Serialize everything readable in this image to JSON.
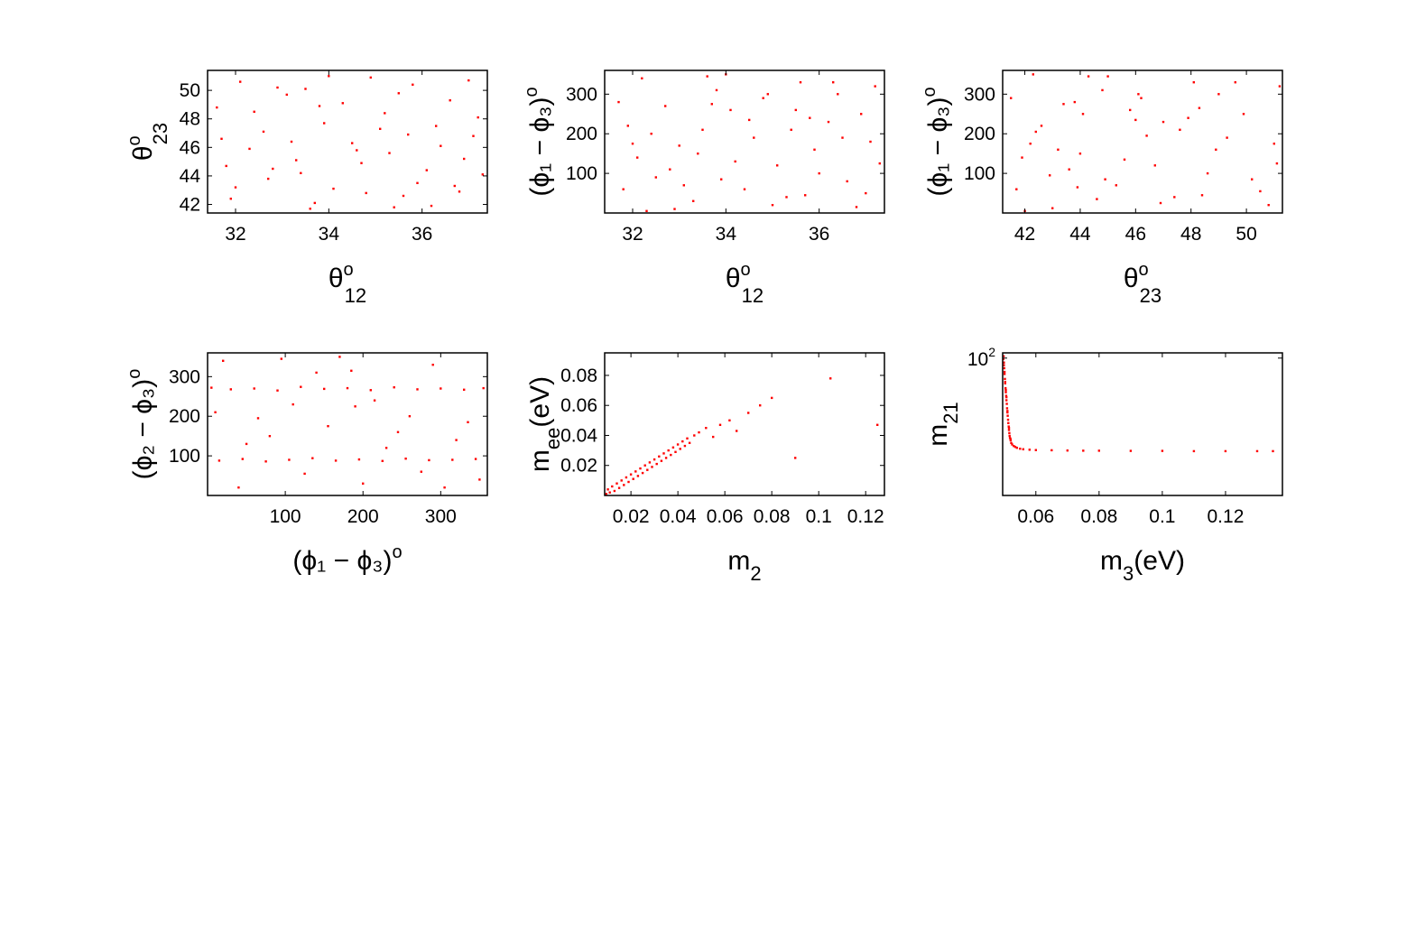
{
  "chart_data": [
    {
      "type": "scatter",
      "xlabel": {
        "base": "θ",
        "sup": "o",
        "sub": "12"
      },
      "ylabel": {
        "base": "θ",
        "sup": "o",
        "sub": "23"
      },
      "xlim": [
        31.4,
        37.4
      ],
      "ylim": [
        41.4,
        51.4
      ],
      "xticks": [
        32,
        34,
        36
      ],
      "yticks": [
        42,
        44,
        46,
        48,
        50
      ],
      "marker_color": "#ff0000",
      "points": [
        [
          32.1,
          50.6
        ],
        [
          36.9,
          45.2
        ],
        [
          33.7,
          42.1
        ],
        [
          35.2,
          48.4
        ],
        [
          31.8,
          44.7
        ],
        [
          34.5,
          46.3
        ],
        [
          36.2,
          41.9
        ],
        [
          33.1,
          49.7
        ],
        [
          35.9,
          43.5
        ],
        [
          32.6,
          47.1
        ],
        [
          34.9,
          50.9
        ],
        [
          37.1,
          46.8
        ],
        [
          33.4,
          44.2
        ],
        [
          35.6,
          42.6
        ],
        [
          32.3,
          45.9
        ],
        [
          36.6,
          49.3
        ],
        [
          34.1,
          43.1
        ],
        [
          31.6,
          48.8
        ],
        [
          35.3,
          45.6
        ],
        [
          33.9,
          47.7
        ],
        [
          36.8,
          42.9
        ],
        [
          32.9,
          50.2
        ],
        [
          34.7,
          44.9
        ],
        [
          37.2,
          48.1
        ],
        [
          33.2,
          46.4
        ],
        [
          35.8,
          50.4
        ],
        [
          31.9,
          42.4
        ],
        [
          36.4,
          46.1
        ],
        [
          34.3,
          49.1
        ],
        [
          32.7,
          43.8
        ],
        [
          35.1,
          47.3
        ],
        [
          33.6,
          41.7
        ],
        [
          36.1,
          44.4
        ],
        [
          32.4,
          48.5
        ],
        [
          34.8,
          42.8
        ],
        [
          37.0,
          50.7
        ],
        [
          33.3,
          45.1
        ],
        [
          35.5,
          49.8
        ],
        [
          31.7,
          46.6
        ],
        [
          36.7,
          43.3
        ],
        [
          34.0,
          51.0
        ],
        [
          32.8,
          44.5
        ],
        [
          35.4,
          41.8
        ],
        [
          33.8,
          48.9
        ],
        [
          36.3,
          47.5
        ],
        [
          32.0,
          43.2
        ],
        [
          34.6,
          45.8
        ],
        [
          37.3,
          44.1
        ],
        [
          33.5,
          50.1
        ],
        [
          35.7,
          46.9
        ]
      ]
    },
    {
      "type": "scatter",
      "xlabel": {
        "base": "θ",
        "sup": "o",
        "sub": "12"
      },
      "ylabel": {
        "text": "(ϕ₁ − ϕ₃)",
        "sup": "o"
      },
      "xlim": [
        31.4,
        37.4
      ],
      "ylim": [
        0,
        360
      ],
      "xticks": [
        32,
        34,
        36
      ],
      "yticks": [
        100,
        200,
        300
      ],
      "marker_color": "#ff0000",
      "points": [
        [
          32.2,
          340
        ],
        [
          36.8,
          15
        ],
        [
          33.5,
          210
        ],
        [
          35.1,
          120
        ],
        [
          31.7,
          280
        ],
        [
          34.4,
          60
        ],
        [
          36.3,
          330
        ],
        [
          33.0,
          170
        ],
        [
          35.8,
          240
        ],
        [
          32.5,
          90
        ],
        [
          34.9,
          300
        ],
        [
          37.1,
          180
        ],
        [
          33.3,
          30
        ],
        [
          35.5,
          260
        ],
        [
          32.1,
          140
        ],
        [
          36.6,
          80
        ],
        [
          34.0,
          350
        ],
        [
          31.9,
          220
        ],
        [
          35.3,
          40
        ],
        [
          33.8,
          310
        ],
        [
          36.9,
          250
        ],
        [
          32.8,
          110
        ],
        [
          34.6,
          190
        ],
        [
          37.2,
          320
        ],
        [
          33.1,
          70
        ],
        [
          35.9,
          160
        ],
        [
          32.3,
          5
        ],
        [
          36.2,
          230
        ],
        [
          34.2,
          130
        ],
        [
          32.7,
          270
        ],
        [
          35.0,
          20
        ],
        [
          33.6,
          345
        ],
        [
          36.0,
          100
        ],
        [
          32.4,
          200
        ],
        [
          34.8,
          290
        ],
        [
          37.0,
          50
        ],
        [
          33.4,
          150
        ],
        [
          35.6,
          330
        ],
        [
          31.8,
          60
        ],
        [
          36.5,
          190
        ],
        [
          34.1,
          260
        ],
        [
          32.9,
          10
        ],
        [
          35.4,
          210
        ],
        [
          33.9,
          85
        ],
        [
          36.4,
          300
        ],
        [
          32.0,
          175
        ],
        [
          34.5,
          235
        ],
        [
          37.3,
          125
        ],
        [
          33.7,
          275
        ],
        [
          35.7,
          45
        ]
      ]
    },
    {
      "type": "scatter",
      "xlabel": {
        "base": "θ",
        "sup": "o",
        "sub": "23"
      },
      "ylabel": {
        "text": "(ϕ₁ − ϕ₃)",
        "sup": "o"
      },
      "xlim": [
        41.2,
        51.3
      ],
      "ylim": [
        0,
        360
      ],
      "xticks": [
        42,
        44,
        46,
        48,
        50
      ],
      "yticks": [
        100,
        200,
        300
      ],
      "marker_color": "#ff0000",
      "points": [
        [
          42.3,
          350
        ],
        [
          50.8,
          20
        ],
        [
          44.1,
          250
        ],
        [
          46.7,
          120
        ],
        [
          41.5,
          290
        ],
        [
          45.3,
          70
        ],
        [
          49.6,
          330
        ],
        [
          43.2,
          160
        ],
        [
          47.9,
          240
        ],
        [
          42.9,
          95
        ],
        [
          46.1,
          300
        ],
        [
          51.0,
          175
        ],
        [
          44.6,
          35
        ],
        [
          48.3,
          265
        ],
        [
          41.9,
          140
        ],
        [
          50.2,
          85
        ],
        [
          45.0,
          345
        ],
        [
          42.6,
          220
        ],
        [
          47.4,
          40
        ],
        [
          44.8,
          310
        ],
        [
          49.9,
          250
        ],
        [
          43.6,
          110
        ],
        [
          46.4,
          195
        ],
        [
          51.2,
          320
        ],
        [
          43.9,
          65
        ],
        [
          48.9,
          160
        ],
        [
          42.0,
          5
        ],
        [
          47.0,
          230
        ],
        [
          45.6,
          135
        ],
        [
          43.4,
          275
        ],
        [
          46.9,
          25
        ],
        [
          44.3,
          345
        ],
        [
          48.6,
          100
        ],
        [
          42.4,
          205
        ],
        [
          46.2,
          290
        ],
        [
          50.5,
          55
        ],
        [
          44.0,
          150
        ],
        [
          48.1,
          330
        ],
        [
          41.7,
          60
        ],
        [
          49.3,
          190
        ],
        [
          45.8,
          260
        ],
        [
          43.0,
          12
        ],
        [
          47.6,
          210
        ],
        [
          44.9,
          85
        ],
        [
          49.0,
          300
        ],
        [
          42.2,
          175
        ],
        [
          46.0,
          235
        ],
        [
          51.1,
          125
        ],
        [
          43.8,
          280
        ],
        [
          48.4,
          45
        ]
      ]
    },
    {
      "type": "scatter",
      "xlabel": {
        "text": "(ϕ₁ − ϕ₃)",
        "sup": "o"
      },
      "ylabel": {
        "text": "(ϕ₂ − ϕ₃)",
        "sup": "o"
      },
      "xlim": [
        0,
        360
      ],
      "ylim": [
        0,
        360
      ],
      "xticks": [
        100,
        200,
        300
      ],
      "yticks": [
        100,
        200,
        300
      ],
      "marker_color": "#ff0000",
      "points": [
        [
          5,
          272
        ],
        [
          30,
          268
        ],
        [
          60,
          270
        ],
        [
          90,
          265
        ],
        [
          120,
          274
        ],
        [
          150,
          269
        ],
        [
          180,
          271
        ],
        [
          210,
          266
        ],
        [
          240,
          273
        ],
        [
          270,
          268
        ],
        [
          300,
          270
        ],
        [
          330,
          267
        ],
        [
          355,
          271
        ],
        [
          15,
          88
        ],
        [
          45,
          92
        ],
        [
          75,
          86
        ],
        [
          105,
          90
        ],
        [
          135,
          94
        ],
        [
          165,
          88
        ],
        [
          195,
          91
        ],
        [
          225,
          87
        ],
        [
          255,
          93
        ],
        [
          285,
          89
        ],
        [
          315,
          90
        ],
        [
          345,
          92
        ],
        [
          20,
          340
        ],
        [
          80,
          150
        ],
        [
          140,
          310
        ],
        [
          200,
          30
        ],
        [
          260,
          200
        ],
        [
          320,
          140
        ],
        [
          40,
          20
        ],
        [
          110,
          230
        ],
        [
          170,
          350
        ],
        [
          230,
          120
        ],
        [
          290,
          330
        ],
        [
          350,
          40
        ],
        [
          65,
          195
        ],
        [
          125,
          55
        ],
        [
          185,
          315
        ],
        [
          245,
          160
        ],
        [
          305,
          20
        ],
        [
          10,
          210
        ],
        [
          95,
          345
        ],
        [
          155,
          175
        ],
        [
          215,
          240
        ],
        [
          275,
          60
        ],
        [
          335,
          185
        ],
        [
          50,
          130
        ],
        [
          190,
          225
        ]
      ]
    },
    {
      "type": "scatter",
      "xlabel": {
        "base": "m",
        "sub": "2"
      },
      "ylabel": {
        "base": "m",
        "sub": "ee",
        "after": "(eV)"
      },
      "xlim": [
        0.0088,
        0.128
      ],
      "ylim": [
        0,
        0.095
      ],
      "xticks": [
        0.02,
        0.04,
        0.06,
        0.08,
        0.1,
        0.12
      ],
      "xtick_labels": [
        "0.02",
        "0.04",
        "0.06",
        "0.08",
        "0.1",
        "0.12"
      ],
      "yticks": [
        0.02,
        0.04,
        0.06,
        0.08
      ],
      "marker_color": "#ff0000",
      "points": [
        [
          0.0095,
          0.001
        ],
        [
          0.0102,
          0.004
        ],
        [
          0.011,
          0.002
        ],
        [
          0.012,
          0.006
        ],
        [
          0.013,
          0.003
        ],
        [
          0.014,
          0.008
        ],
        [
          0.015,
          0.005
        ],
        [
          0.016,
          0.01
        ],
        [
          0.017,
          0.007
        ],
        [
          0.018,
          0.012
        ],
        [
          0.019,
          0.009
        ],
        [
          0.02,
          0.014
        ],
        [
          0.021,
          0.011
        ],
        [
          0.022,
          0.016
        ],
        [
          0.023,
          0.013
        ],
        [
          0.024,
          0.018
        ],
        [
          0.025,
          0.015
        ],
        [
          0.026,
          0.02
        ],
        [
          0.027,
          0.017
        ],
        [
          0.028,
          0.022
        ],
        [
          0.029,
          0.019
        ],
        [
          0.03,
          0.024
        ],
        [
          0.031,
          0.021
        ],
        [
          0.032,
          0.026
        ],
        [
          0.033,
          0.023
        ],
        [
          0.034,
          0.028
        ],
        [
          0.035,
          0.025
        ],
        [
          0.036,
          0.03
        ],
        [
          0.037,
          0.027
        ],
        [
          0.038,
          0.032
        ],
        [
          0.039,
          0.029
        ],
        [
          0.04,
          0.034
        ],
        [
          0.041,
          0.031
        ],
        [
          0.042,
          0.036
        ],
        [
          0.043,
          0.033
        ],
        [
          0.044,
          0.038
        ],
        [
          0.045,
          0.035
        ],
        [
          0.047,
          0.04
        ],
        [
          0.049,
          0.042
        ],
        [
          0.052,
          0.045
        ],
        [
          0.055,
          0.039
        ],
        [
          0.058,
          0.047
        ],
        [
          0.062,
          0.05
        ],
        [
          0.065,
          0.043
        ],
        [
          0.07,
          0.055
        ],
        [
          0.075,
          0.06
        ],
        [
          0.08,
          0.065
        ],
        [
          0.09,
          0.025
        ],
        [
          0.105,
          0.078
        ],
        [
          0.125,
          0.047
        ]
      ]
    },
    {
      "type": "scatter",
      "xlabel": {
        "base": "m",
        "sub": "3",
        "after": "(eV)"
      },
      "ylabel": {
        "base": "m",
        "sub": "21"
      },
      "xlim": [
        0.0495,
        0.138
      ],
      "ylim": [
        0.1,
        130
      ],
      "yscale": "log",
      "xticks": [
        0.06,
        0.08,
        0.1,
        0.12
      ],
      "xtick_labels": [
        "0.06",
        "0.08",
        "0.1",
        "0.12"
      ],
      "yticks": [
        100
      ],
      "ytick_labels": [
        {
          "base": "10",
          "sup": "2"
        }
      ],
      "marker_color": "#ff0000",
      "points": [
        [
          0.0498,
          110
        ],
        [
          0.0499,
          80
        ],
        [
          0.05,
          60
        ],
        [
          0.0501,
          45
        ],
        [
          0.0502,
          35
        ],
        [
          0.0503,
          28
        ],
        [
          0.0504,
          22
        ],
        [
          0.0505,
          18
        ],
        [
          0.0506,
          15
        ],
        [
          0.0507,
          12
        ],
        [
          0.0508,
          10
        ],
        [
          0.0509,
          8
        ],
        [
          0.051,
          6.5
        ],
        [
          0.0511,
          5.5
        ],
        [
          0.0512,
          4.5
        ],
        [
          0.0513,
          3.8
        ],
        [
          0.0514,
          3.2
        ],
        [
          0.0515,
          2.7
        ],
        [
          0.0516,
          2.3
        ],
        [
          0.0517,
          2.0
        ],
        [
          0.0518,
          1.8
        ],
        [
          0.052,
          1.6
        ],
        [
          0.0522,
          1.4
        ],
        [
          0.0525,
          1.3
        ],
        [
          0.053,
          1.2
        ],
        [
          0.0535,
          1.15
        ],
        [
          0.054,
          1.1
        ],
        [
          0.055,
          1.05
        ],
        [
          0.056,
          1.02
        ],
        [
          0.058,
          1.0
        ],
        [
          0.06,
          0.98
        ],
        [
          0.065,
          0.97
        ],
        [
          0.07,
          0.96
        ],
        [
          0.075,
          0.95
        ],
        [
          0.08,
          0.95
        ],
        [
          0.09,
          0.94
        ],
        [
          0.1,
          0.94
        ],
        [
          0.11,
          0.93
        ],
        [
          0.12,
          0.93
        ],
        [
          0.13,
          0.93
        ],
        [
          0.135,
          0.93
        ],
        [
          0.0497,
          95
        ],
        [
          0.0499,
          70
        ],
        [
          0.0501,
          50
        ],
        [
          0.0503,
          30
        ],
        [
          0.0505,
          20
        ],
        [
          0.0507,
          14
        ],
        [
          0.051,
          7
        ],
        [
          0.0515,
          3
        ],
        [
          0.052,
          1.7
        ]
      ]
    }
  ]
}
